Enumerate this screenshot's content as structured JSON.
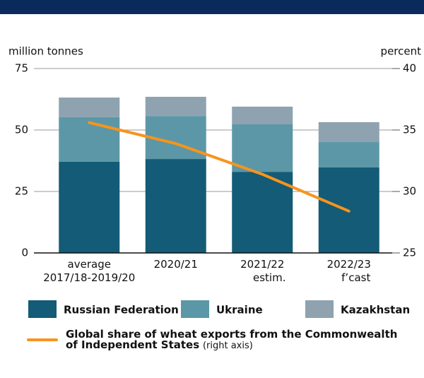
{
  "chart_data": {
    "type": "bar",
    "stacked": true,
    "categories": [
      [
        "average",
        "2017/18-2019/20"
      ],
      [
        "2020/21"
      ],
      [
        "2021/22",
        "estim."
      ],
      [
        "2022/23",
        "f’cast"
      ]
    ],
    "series": [
      {
        "name": "Russian Federation",
        "color": "#135b76",
        "values": [
          37.1,
          38.2,
          33.0,
          34.8
        ]
      },
      {
        "name": "Ukraine",
        "color": "#5b97a7",
        "values": [
          18.1,
          17.5,
          19.3,
          10.3
        ]
      },
      {
        "name": "Kazakhstan",
        "color": "#8ea2b0",
        "values": [
          8.0,
          7.8,
          7.2,
          8.1
        ]
      },
      {
        "name": "Global share of wheat exports from the Commonwealth of Independent States",
        "note": "(right axis)",
        "type": "line",
        "axis": "y2",
        "color": "#f7941d",
        "values": [
          35.6,
          33.9,
          31.4,
          28.4
        ]
      }
    ],
    "ylabel": "million tonnes",
    "y2label": "percent",
    "ylim": [
      0,
      75
    ],
    "yticks": [
      0,
      25,
      50,
      75
    ],
    "y2lim": [
      25,
      40
    ],
    "y2ticks": [
      25,
      30,
      35,
      40
    ],
    "grid": true
  }
}
